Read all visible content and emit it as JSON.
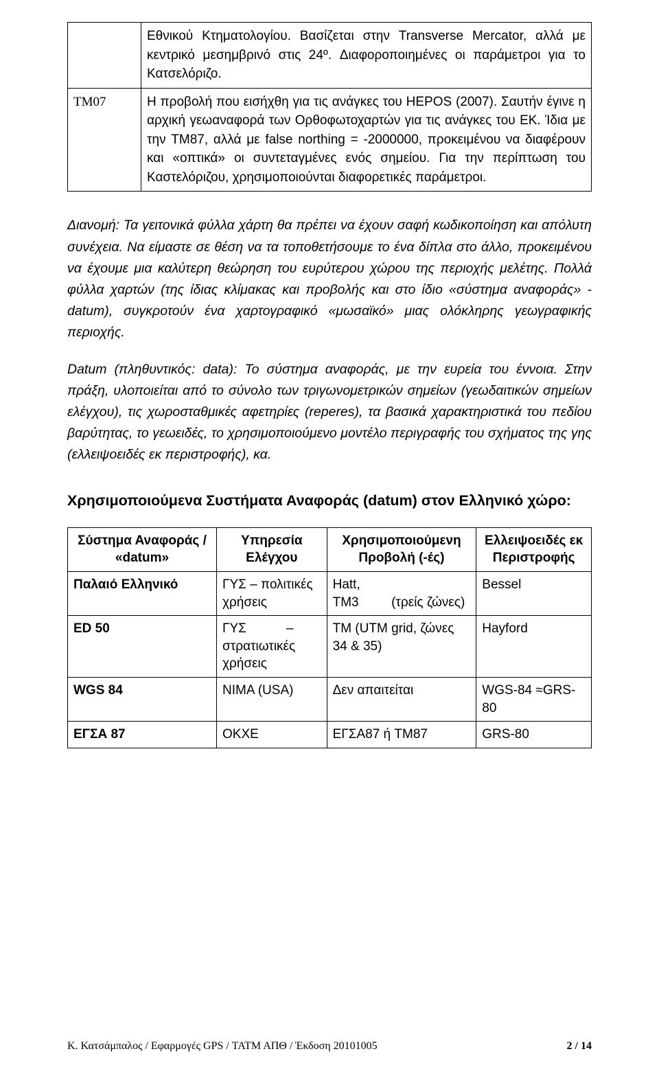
{
  "top_table": {
    "row1": {
      "label": "",
      "text": "Εθνικού Κτηματολογίου. Βασίζεται στην Transverse Mercator, αλλά με κεντρικό μεσημβρινό στις 24º. Διαφοροποιημένες οι παράμετροι για το Κατσελόριζο."
    },
    "row2": {
      "label": "TM07",
      "text": "Η προβολή που εισήχθη για τις ανάγκες του HEPOS (2007). Σαυτήν έγινε η αρχική γεωαναφορά των Ορθοφωτοχαρτών για τις ανάγκες του ΕΚ. Ίδια με την TM87, αλλά με false northing = -2000000, προκειμένου να διαφέρουν και «οπτικά» οι συντεταγμένες ενός σημείου. Για την περίπτωση του Καστελόριζου, χρησιμοποιούνται διαφορετικές παράμετροι."
    }
  },
  "paragraphs": {
    "dianomi_lead": "Διανομή:",
    "dianomi_body": " Τα γειτονικά φύλλα χάρτη θα πρέπει να έχουν σαφή κωδικοποίηση και απόλυτη συνέχεια. Να είμαστε σε θέση να τα τοποθετήσουμε το ένα δίπλα στο άλλο, προκειμένου να έχουμε μια καλύτερη θεώρηση του ευρύτερου χώρου της περιοχής μελέτης. Πολλά φύλλα χαρτών (της ίδιας κλίμακας και προβολής και στο ίδιο «σύστημα αναφοράς» - datum), συγκροτούν ένα χαρτογραφικό «μωσαϊκό» μιας ολόκληρης γεωγραφικής περιοχής.",
    "datum_lead": "Datum (πληθυντικός: data):",
    "datum_body": " Το σύστημα αναφοράς, με την ευρεία του έννοια. Στην πράξη, υλοποιείται από το σύνολο των τριγωνομετρικών σημείων (γεωδαιτικών σημείων ελέγχου), τις χωροσταθμικές αφετηρίες (reperes), τα βασικά χαρακτηριστικά του πεδίου βαρύτητας, το γεωειδές, το χρησιμοποιούμενο μοντέλο περιγραφής του σχήματος της γης (ελλειψοειδές εκ περιστροφής), κα."
  },
  "subheading": "Χρησιμοποιούμενα Συστήματα Αναφοράς (datum) στον Ελληνικό χώρο:",
  "datum_table": {
    "headers": {
      "c1": "Σύστημα Αναφοράς / «datum»",
      "c2": "Υπηρεσία Ελέγχου",
      "c3": "Χρησιμοποιούμενη Προβολή (-ές)",
      "c4": "Ελλειψοειδές εκ Περιστροφής"
    },
    "rows": [
      {
        "sys": "Παλαιό Ελληνικό",
        "agency": "ΓΥΣ – πολιτικές χρήσεις",
        "proj": "Hatt,\nTM3 (τρείς ζώνες)",
        "ell": "Bessel"
      },
      {
        "sys": "ED 50",
        "agency": "ΓΥΣ – στρατιωτικές χρήσεις",
        "proj": "TM (UTM grid, ζώνες 34 & 35)",
        "ell": "Hayford"
      },
      {
        "sys": "WGS 84",
        "agency": "NIMA (USA)",
        "proj": "Δεν απαιτείται",
        "ell": "WGS-84 ≈GRS-80"
      },
      {
        "sys": "ΕΓΣΑ 87",
        "agency": "ΟΚΧΕ",
        "proj": "ΕΓΣΑ87 ή TM87",
        "ell": "GRS-80"
      }
    ]
  },
  "footer": {
    "left": "Κ. Κατσάμπαλος    / Εφαρμογές GPS /    ΤΑΤΜ ΑΠΘ   /   Έκδοση  20101005",
    "right": "2 / 14"
  },
  "style": {
    "page_bg": "#ffffff",
    "text_color": "#000000",
    "border_color": "#000000",
    "font_family": "Comic Sans MS",
    "base_fontsize_pt": 14,
    "heading_fontsize_pt": 16,
    "footer_fontsize_pt": 11
  }
}
